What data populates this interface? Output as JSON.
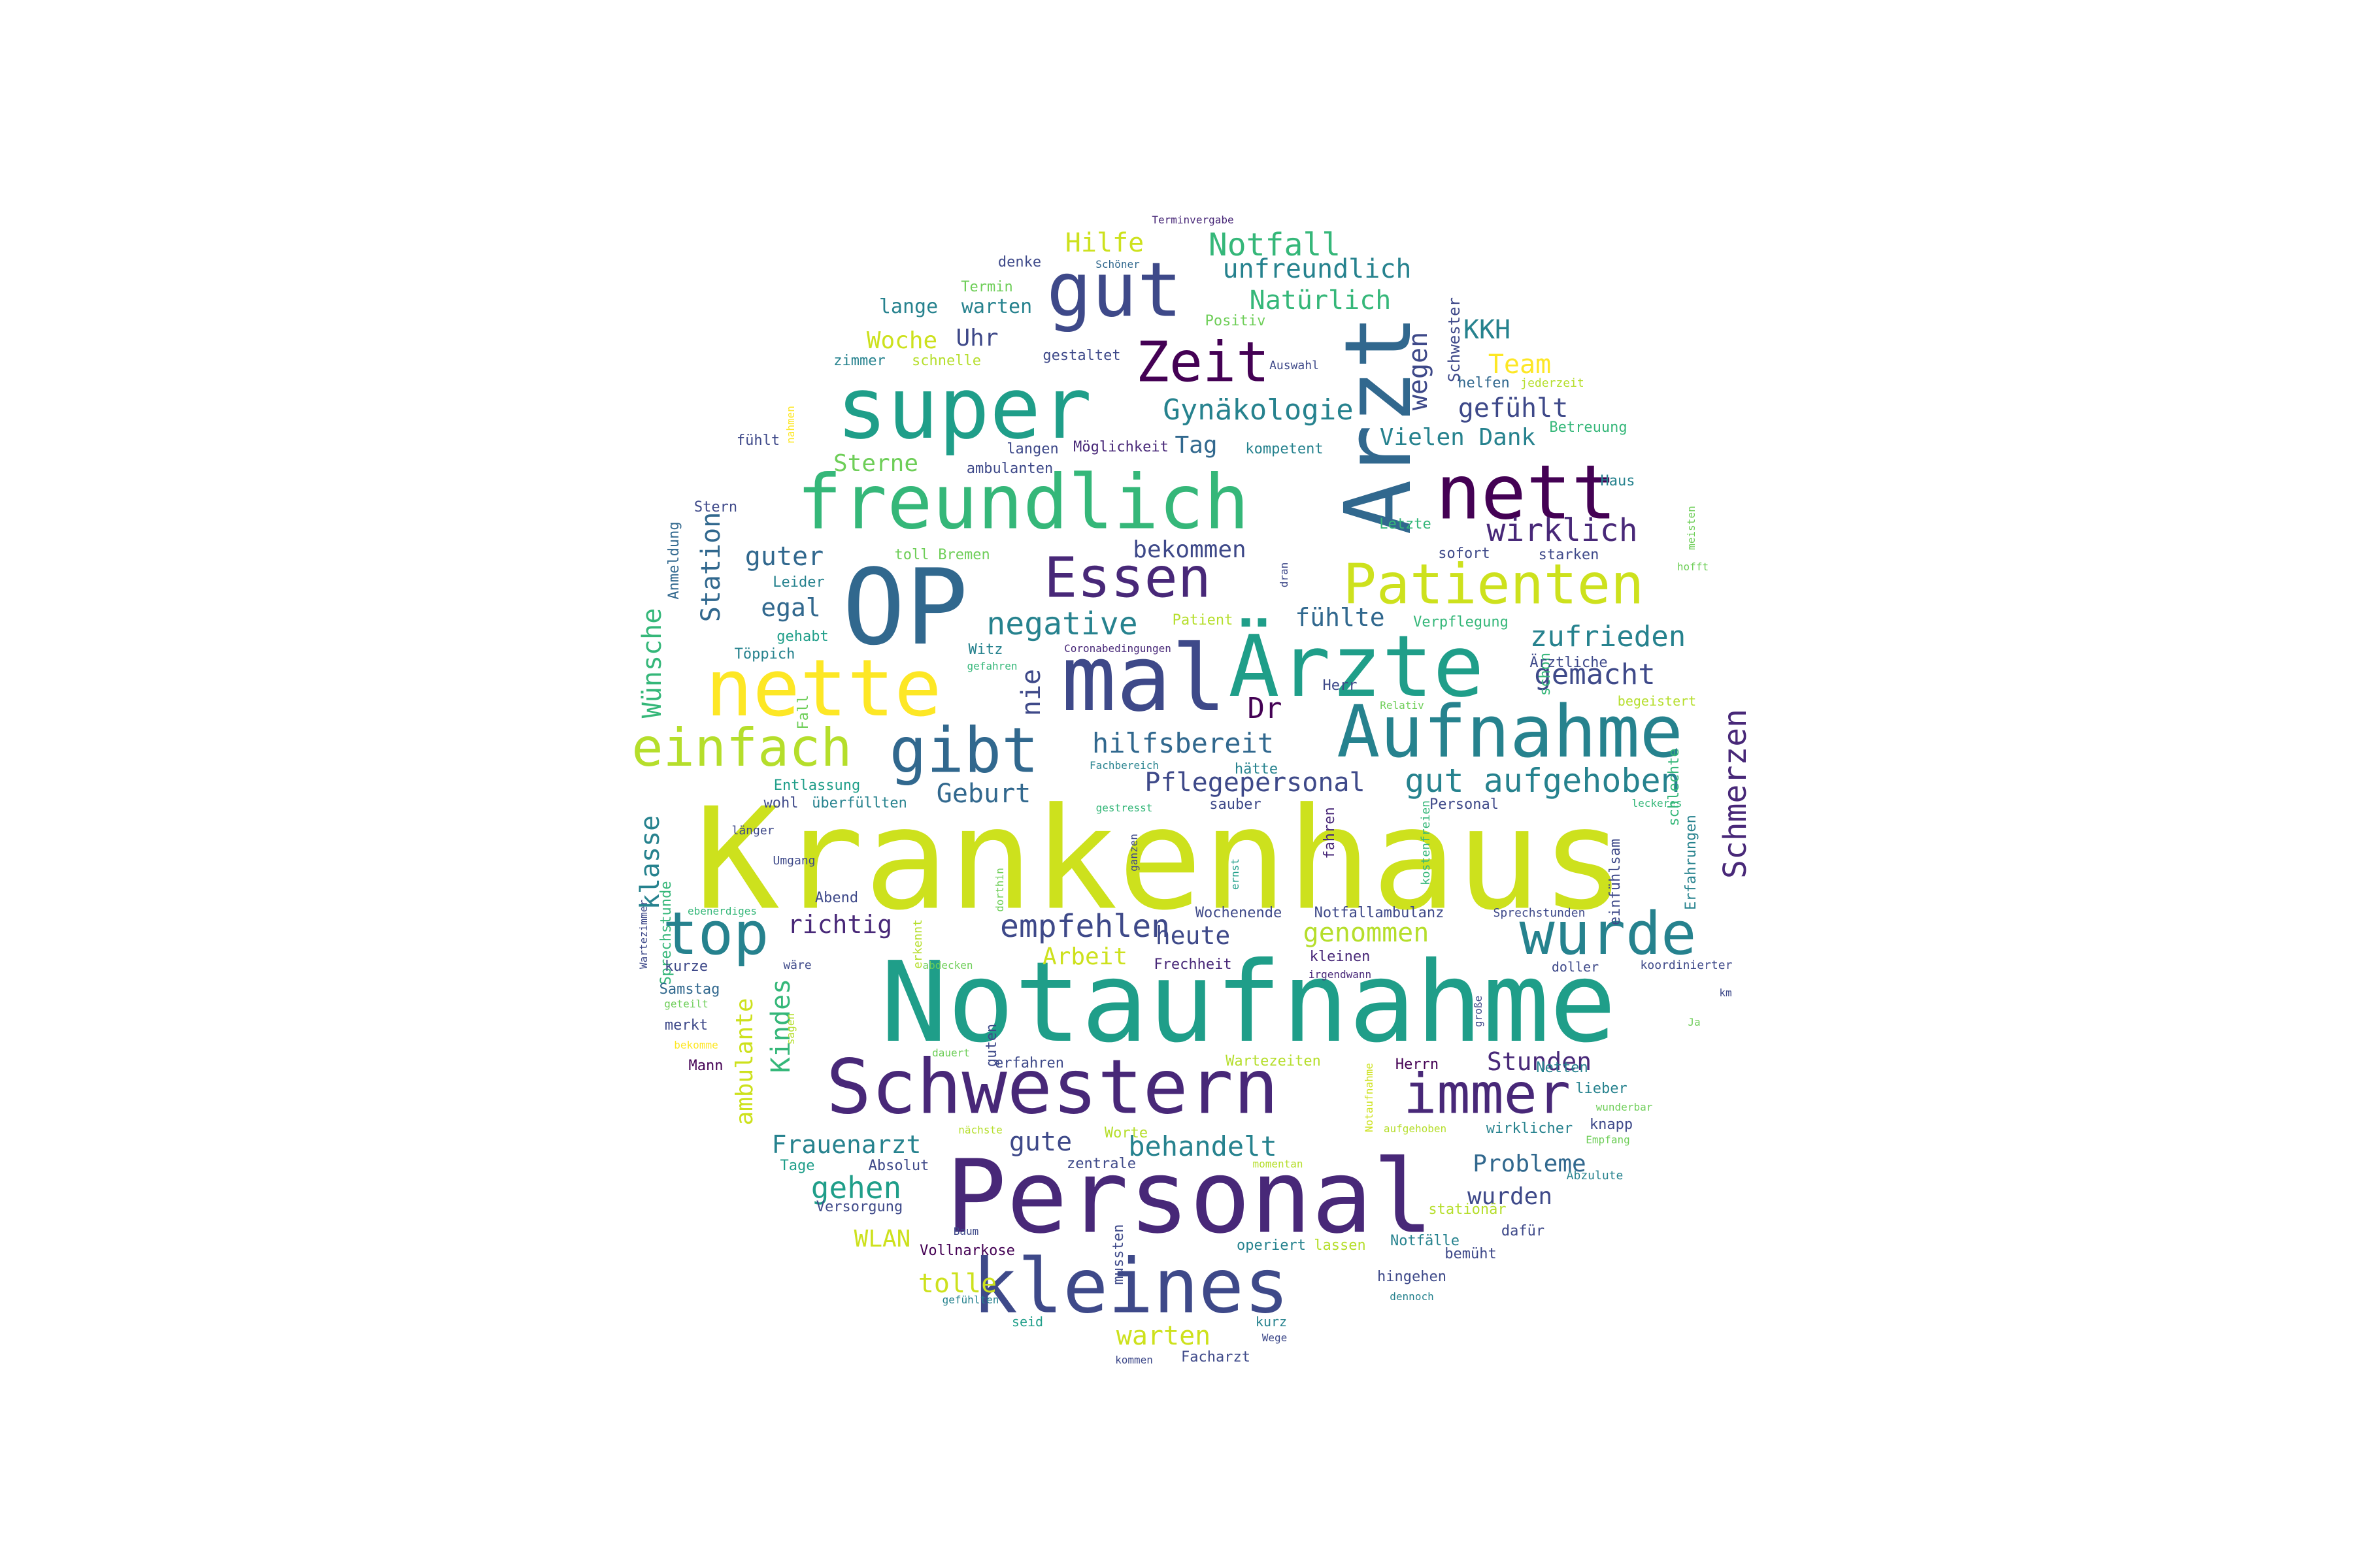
{
  "word_cloud": {
    "palette": [
      "#440154",
      "#482878",
      "#3e4989",
      "#31688e",
      "#26828e",
      "#1f9e89",
      "#35b779",
      "#6ece58",
      "#b5de2b",
      "#cde11d",
      "#fde725"
    ],
    "words": [
      {
        "text": "Krankenhaus",
        "color": "#cde11d"
      },
      {
        "text": "Notaufnahme",
        "color": "#1f9e89"
      },
      {
        "text": "Personal",
        "color": "#482878"
      },
      {
        "text": "Arzt",
        "color": "#31688e"
      },
      {
        "text": "OP",
        "color": "#31688e"
      },
      {
        "text": "super",
        "color": "#1f9e89"
      },
      {
        "text": "freundlich",
        "color": "#35b779"
      },
      {
        "text": "Schwestern",
        "color": "#482878"
      },
      {
        "text": "Ärzte",
        "color": "#1f9e89"
      },
      {
        "text": "mal",
        "color": "#3e4989"
      },
      {
        "text": "nette",
        "color": "#fde725"
      },
      {
        "text": "kleines",
        "color": "#3e4989"
      },
      {
        "text": "nett",
        "color": "#440154"
      },
      {
        "text": "gut",
        "color": "#3e4989"
      },
      {
        "text": "Aufnahme",
        "color": "#26828e"
      },
      {
        "text": "Patienten",
        "color": "#cde11d"
      },
      {
        "text": "Essen",
        "color": "#482878"
      },
      {
        "text": "gibt",
        "color": "#31688e"
      },
      {
        "text": "einfach",
        "color": "#b5de2b"
      },
      {
        "text": "Zeit",
        "color": "#440154"
      },
      {
        "text": "top",
        "color": "#26828e"
      },
      {
        "text": "wurde",
        "color": "#26828e"
      },
      {
        "text": "immer",
        "color": "#482878"
      },
      {
        "text": "Notfall",
        "color": "#35b779"
      },
      {
        "text": "Hilfe",
        "color": "#cde11d"
      },
      {
        "text": "unfreundlich",
        "color": "#26828e"
      },
      {
        "text": "Natürlich",
        "color": "#35b779"
      },
      {
        "text": "KKH",
        "color": "#26828e"
      },
      {
        "text": "Team",
        "color": "#fde725"
      },
      {
        "text": "Gynäkologie",
        "color": "#26828e"
      },
      {
        "text": "gefühlt",
        "color": "#3e4989"
      },
      {
        "text": "Woche",
        "color": "#cde11d"
      },
      {
        "text": "Uhr",
        "color": "#3e4989"
      },
      {
        "text": "lange",
        "color": "#26828e"
      },
      {
        "text": "warten",
        "color": "#26828e"
      },
      {
        "text": "Tag",
        "color": "#31688e"
      },
      {
        "text": "Vielen Dank",
        "color": "#26828e"
      },
      {
        "text": "Sterne",
        "color": "#6ece58"
      },
      {
        "text": "wirklich",
        "color": "#482878"
      },
      {
        "text": "bekommen",
        "color": "#3e4989"
      },
      {
        "text": "guter",
        "color": "#31688e"
      },
      {
        "text": "Station",
        "color": "#31688e"
      },
      {
        "text": "egal",
        "color": "#31688e"
      },
      {
        "text": "negative",
        "color": "#26828e"
      },
      {
        "text": "fühlte",
        "color": "#31688e"
      },
      {
        "text": "zufrieden",
        "color": "#26828e"
      },
      {
        "text": "gemacht",
        "color": "#3e4989"
      },
      {
        "text": "Wünsche",
        "color": "#35b779"
      },
      {
        "text": "nie",
        "color": "#3e4989"
      },
      {
        "text": "Dr",
        "color": "#440154"
      },
      {
        "text": "hilfsbereit",
        "color": "#31688e"
      },
      {
        "text": "gut aufgehoben",
        "color": "#26828e"
      },
      {
        "text": "Pflegepersonal",
        "color": "#3e4989"
      },
      {
        "text": "Geburt",
        "color": "#31688e"
      },
      {
        "text": "Schmerzen",
        "color": "#482878"
      },
      {
        "text": "klasse",
        "color": "#26828e"
      },
      {
        "text": "empfehlen",
        "color": "#3e4989"
      },
      {
        "text": "richtig",
        "color": "#482878"
      },
      {
        "text": "heute",
        "color": "#3e4989"
      },
      {
        "text": "genommen",
        "color": "#b5de2b"
      },
      {
        "text": "Arbeit",
        "color": "#cde11d"
      },
      {
        "text": "wegen",
        "color": "#3e4989"
      },
      {
        "text": "Kindes",
        "color": "#35b779"
      },
      {
        "text": "ambulante",
        "color": "#cde11d"
      },
      {
        "text": "Frauenarzt",
        "color": "#26828e"
      },
      {
        "text": "gute",
        "color": "#3e4989"
      },
      {
        "text": "behandelt",
        "color": "#26828e"
      },
      {
        "text": "Stunden",
        "color": "#482878"
      },
      {
        "text": "Probleme",
        "color": "#31688e"
      },
      {
        "text": "wurden",
        "color": "#3e4989"
      },
      {
        "text": "gehen",
        "color": "#1f9e89"
      },
      {
        "text": "WLAN",
        "color": "#cde11d"
      },
      {
        "text": "tolle",
        "color": "#cde11d"
      },
      {
        "text": "warten",
        "color": "#cde11d"
      },
      {
        "text": "Terminvergabe",
        "color": "#482878"
      },
      {
        "text": "Schöner",
        "color": "#31688e"
      },
      {
        "text": "denke",
        "color": "#3e4989"
      },
      {
        "text": "Termin",
        "color": "#6ece58"
      },
      {
        "text": "Positiv",
        "color": "#6ece58"
      },
      {
        "text": "Schwester",
        "color": "#3e4989"
      },
      {
        "text": "gestaltet",
        "color": "#3e4989"
      },
      {
        "text": "zimmer",
        "color": "#26828e"
      },
      {
        "text": "schnelle",
        "color": "#b5de2b"
      },
      {
        "text": "Auswahl",
        "color": "#3e4989"
      },
      {
        "text": "helfen",
        "color": "#31688e"
      },
      {
        "text": "jederzeit",
        "color": "#b5de2b"
      },
      {
        "text": "Betreuung",
        "color": "#35b779"
      },
      {
        "text": "nahmen",
        "color": "#fde725"
      },
      {
        "text": "fühlt",
        "color": "#3e4989"
      },
      {
        "text": "langen",
        "color": "#3e4989"
      },
      {
        "text": "Möglichkeit",
        "color": "#482878"
      },
      {
        "text": "kompetent",
        "color": "#26828e"
      },
      {
        "text": "ambulanten",
        "color": "#3e4989"
      },
      {
        "text": "Haus",
        "color": "#26828e"
      },
      {
        "text": "Stern",
        "color": "#3e4989"
      },
      {
        "text": "Letzte",
        "color": "#35b779"
      },
      {
        "text": "meisten",
        "color": "#6ece58"
      },
      {
        "text": "Anmeldung",
        "color": "#31688e"
      },
      {
        "text": "toll",
        "color": "#6ece58"
      },
      {
        "text": "Bremen",
        "color": "#6ece58"
      },
      {
        "text": "dran",
        "color": "#3e4989"
      },
      {
        "text": "sofort",
        "color": "#3e4989"
      },
      {
        "text": "starken",
        "color": "#3e4989"
      },
      {
        "text": "hofft",
        "color": "#6ece58"
      },
      {
        "text": "Leider",
        "color": "#26828e"
      },
      {
        "text": "gehabt",
        "color": "#1f9e89"
      },
      {
        "text": "Patient",
        "color": "#b5de2b"
      },
      {
        "text": "Verpflegung",
        "color": "#35b779"
      },
      {
        "text": "Töppich",
        "color": "#26828e"
      },
      {
        "text": "Witz",
        "color": "#26828e"
      },
      {
        "text": "Coronabedingungen",
        "color": "#482878"
      },
      {
        "text": "gefahren",
        "color": "#35b779"
      },
      {
        "text": "Herr",
        "color": "#3e4989"
      },
      {
        "text": "schon",
        "color": "#35b779"
      },
      {
        "text": "Ärztliche",
        "color": "#3e4989"
      },
      {
        "text": "Relativ",
        "color": "#6ece58"
      },
      {
        "text": "begeistert",
        "color": "#b5de2b"
      },
      {
        "text": "Fall",
        "color": "#6ece58"
      },
      {
        "text": "Fachbereich",
        "color": "#26828e"
      },
      {
        "text": "hätte",
        "color": "#26828e"
      },
      {
        "text": "Entlassung",
        "color": "#1f9e89"
      },
      {
        "text": "wohl",
        "color": "#3e4989"
      },
      {
        "text": "überfüllten",
        "color": "#26828e"
      },
      {
        "text": "schlechte",
        "color": "#35b779"
      },
      {
        "text": "leckeres",
        "color": "#35b779"
      },
      {
        "text": "gestresst",
        "color": "#35b779"
      },
      {
        "text": "sauber",
        "color": "#3e4989"
      },
      {
        "text": "Personal",
        "color": "#3e4989"
      },
      {
        "text": "länger",
        "color": "#3e4989"
      },
      {
        "text": "Umgang",
        "color": "#3e4989"
      },
      {
        "text": "ganzen",
        "color": "#3e4989"
      },
      {
        "text": "ernst",
        "color": "#1f9e89"
      },
      {
        "text": "fahren",
        "color": "#482878"
      },
      {
        "text": "kostenfreien",
        "color": "#35b779"
      },
      {
        "text": "einfühlsam",
        "color": "#3e4989"
      },
      {
        "text": "Erfahrungen",
        "color": "#26828e"
      },
      {
        "text": "Abend",
        "color": "#3e4989"
      },
      {
        "text": "ebenerdiges",
        "color": "#35b779"
      },
      {
        "text": "Sprechstunde",
        "color": "#35b779"
      },
      {
        "text": "Wartezimmer",
        "color": "#3e4989"
      },
      {
        "text": "dorthin",
        "color": "#6ece58"
      },
      {
        "text": "erkennt",
        "color": "#b5de2b"
      },
      {
        "text": "Wochenende",
        "color": "#3e4989"
      },
      {
        "text": "Notfallambulanz",
        "color": "#3e4989"
      },
      {
        "text": "Sprechstunden",
        "color": "#3e4989"
      },
      {
        "text": "abdecken",
        "color": "#6ece58"
      },
      {
        "text": "Frechheit",
        "color": "#482878"
      },
      {
        "text": "kleinen",
        "color": "#482878"
      },
      {
        "text": "irgendwann",
        "color": "#482878"
      },
      {
        "text": "doller",
        "color": "#3e4989"
      },
      {
        "text": "koordinierter",
        "color": "#3e4989"
      },
      {
        "text": "kurze",
        "color": "#3e4989"
      },
      {
        "text": "wäre",
        "color": "#3e4989"
      },
      {
        "text": "Samstag",
        "color": "#31688e"
      },
      {
        "text": "geteilt",
        "color": "#6ece58"
      },
      {
        "text": "km",
        "color": "#3e4989"
      },
      {
        "text": "merkt",
        "color": "#3e4989"
      },
      {
        "text": "Ja",
        "color": "#6ece58"
      },
      {
        "text": "bekomme",
        "color": "#fde725"
      },
      {
        "text": "sagen",
        "color": "#b5de2b"
      },
      {
        "text": "dauert",
        "color": "#6ece58"
      },
      {
        "text": "guten",
        "color": "#3e4989"
      },
      {
        "text": "große",
        "color": "#3e4989"
      },
      {
        "text": "Mann",
        "color": "#440154"
      },
      {
        "text": "erfahren",
        "color": "#3e4989"
      },
      {
        "text": "Wartezeiten",
        "color": "#b5de2b"
      },
      {
        "text": "Herrn",
        "color": "#440154"
      },
      {
        "text": "Netten",
        "color": "#26828e"
      },
      {
        "text": "lieber",
        "color": "#26828e"
      },
      {
        "text": "wunderbar",
        "color": "#6ece58"
      },
      {
        "text": "knapp",
        "color": "#3e4989"
      },
      {
        "text": "Empfang",
        "color": "#6ece58"
      },
      {
        "text": "Notaufnahme",
        "color": "#cde11d"
      },
      {
        "text": "nächste",
        "color": "#b5de2b"
      },
      {
        "text": "Worte",
        "color": "#b5de2b"
      },
      {
        "text": "aufgehoben",
        "color": "#b5de2b"
      },
      {
        "text": "wirklicher",
        "color": "#26828e"
      },
      {
        "text": "Tage",
        "color": "#1f9e89"
      },
      {
        "text": "Absolut",
        "color": "#3e4989"
      },
      {
        "text": "zentrale",
        "color": "#3e4989"
      },
      {
        "text": "momentan",
        "color": "#b5de2b"
      },
      {
        "text": "Abzulute",
        "color": "#26828e"
      },
      {
        "text": "Versorgung",
        "color": "#3e4989"
      },
      {
        "text": "stationär",
        "color": "#b5de2b"
      },
      {
        "text": "dafür",
        "color": "#3e4989"
      },
      {
        "text": "Baum",
        "color": "#3e4989"
      },
      {
        "text": "operiert",
        "color": "#26828e"
      },
      {
        "text": "lassen",
        "color": "#b5de2b"
      },
      {
        "text": "Notfälle",
        "color": "#26828e"
      },
      {
        "text": "bemüht",
        "color": "#3e4989"
      },
      {
        "text": "Vollnarkose",
        "color": "#440154"
      },
      {
        "text": "mussten",
        "color": "#3e4989"
      },
      {
        "text": "hingehen",
        "color": "#3e4989"
      },
      {
        "text": "gefühlten",
        "color": "#26828e"
      },
      {
        "text": "dennoch",
        "color": "#26828e"
      },
      {
        "text": "seid",
        "color": "#1f9e89"
      },
      {
        "text": "kurz",
        "color": "#26828e"
      },
      {
        "text": "Wege",
        "color": "#3e4989"
      },
      {
        "text": "kommen",
        "color": "#3e4989"
      },
      {
        "text": "Facharzt",
        "color": "#3e4989"
      }
    ]
  }
}
